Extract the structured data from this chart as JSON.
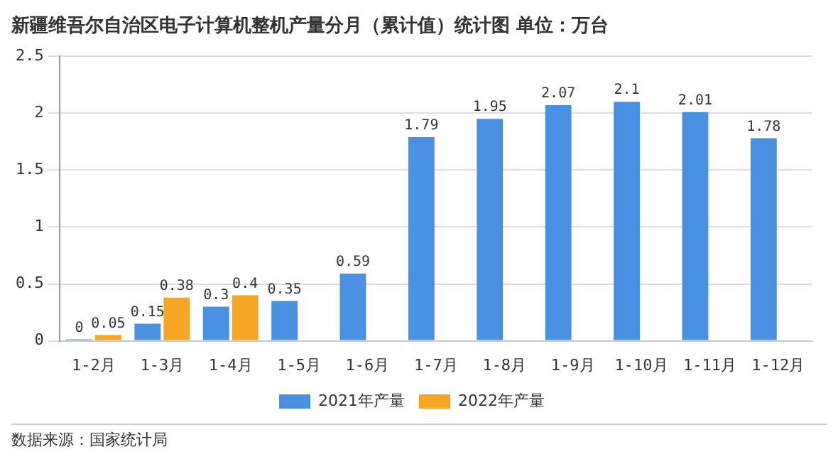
{
  "chart_data": {
    "type": "bar",
    "title": "新疆维吾尔自治区电子计算机整机产量分月（累计值）统计图 单位：万台",
    "categories": [
      "1-2月",
      "1-3月",
      "1-4月",
      "1-5月",
      "1-6月",
      "1-7月",
      "1-8月",
      "1-9月",
      "1-10月",
      "1-11月",
      "1-12月"
    ],
    "series": [
      {
        "name": "2021年产量",
        "color": "#4a90e2",
        "values": [
          0,
          0.15,
          0.3,
          0.35,
          0.59,
          1.79,
          1.95,
          2.07,
          2.1,
          2.01,
          1.78
        ]
      },
      {
        "name": "2022年产量",
        "color": "#f5a623",
        "values": [
          0.05,
          0.38,
          0.4,
          null,
          null,
          null,
          null,
          null,
          null,
          null,
          null
        ]
      }
    ],
    "ylim": [
      0,
      2.5
    ],
    "yticks": [
      0,
      0.5,
      1,
      1.5,
      2,
      2.5
    ],
    "grid": "y",
    "legend": "bottom",
    "data_labels": true,
    "annotations": [
      "数据来源：国家统计局"
    ]
  }
}
